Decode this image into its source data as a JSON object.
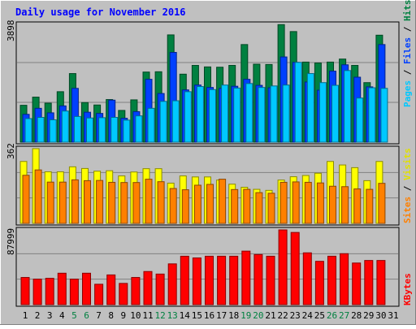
{
  "title": "Daily usage for November 2016",
  "colors": {
    "background": "#c0c0c0",
    "title": "#0000ff",
    "pages": "#00c8ff",
    "files": "#0040ff",
    "hits": "#008040",
    "visits": "#ffff00",
    "sites": "#ff8000",
    "kbytes": "#ff0000",
    "weekend_day": "#008040"
  },
  "chart_data": [
    {
      "type": "bar",
      "panel": "hits-files-pages",
      "title": "Daily usage for November 2016",
      "categories": [
        "1",
        "2",
        "3",
        "4",
        "5",
        "6",
        "7",
        "8",
        "9",
        "10",
        "11",
        "12",
        "13",
        "14",
        "15",
        "16",
        "17",
        "18",
        "19",
        "20",
        "21",
        "22",
        "23",
        "24",
        "25",
        "26",
        "27",
        "28",
        "29",
        "30",
        "31"
      ],
      "ylabel_max": "3898",
      "ylim": [
        0,
        3898
      ],
      "legend": [
        "Pages",
        "Files",
        "Hits"
      ],
      "series": [
        {
          "name": "Hits",
          "values": [
            1220,
            1490,
            1290,
            1670,
            2270,
            1310,
            1230,
            1410,
            1050,
            1400,
            2320,
            2330,
            3550,
            2250,
            2540,
            2490,
            2480,
            2540,
            3230,
            2580,
            2570,
            3890,
            3660,
            2650,
            2620,
            2650,
            2750,
            2540,
            1970,
            3540,
            null
          ]
        },
        {
          "name": "Files",
          "values": [
            920,
            1120,
            970,
            1200,
            1780,
            990,
            950,
            1390,
            790,
            1010,
            2080,
            1610,
            2970,
            1730,
            1890,
            1810,
            1780,
            1850,
            2080,
            1880,
            1800,
            2820,
            2640,
            1990,
            1720,
            2350,
            2560,
            2150,
            1830,
            3230,
            null
          ]
        },
        {
          "name": "Pages",
          "values": [
            780,
            820,
            740,
            1030,
            850,
            800,
            810,
            820,
            730,
            870,
            1120,
            1350,
            1370,
            1670,
            1840,
            1740,
            1890,
            1790,
            1940,
            1810,
            1860,
            1890,
            2640,
            2270,
            1970,
            1880,
            2370,
            1460,
            1800,
            1780,
            null
          ]
        }
      ],
      "weekend_days": [
        "5",
        "6",
        "12",
        "13",
        "19",
        "20",
        "26",
        "27"
      ]
    },
    {
      "type": "bar",
      "panel": "visits-sites",
      "categories": [
        "1",
        "2",
        "3",
        "4",
        "5",
        "6",
        "7",
        "8",
        "9",
        "10",
        "11",
        "12",
        "13",
        "14",
        "15",
        "16",
        "17",
        "18",
        "19",
        "20",
        "21",
        "22",
        "23",
        "24",
        "25",
        "26",
        "27",
        "28",
        "29",
        "30",
        "31"
      ],
      "ylabel_max": "362",
      "ylim": [
        0,
        362
      ],
      "legend": [
        "Sites",
        "Visits"
      ],
      "series": [
        {
          "name": "Visits",
          "values": [
            300,
            362,
            250,
            250,
            274,
            266,
            253,
            255,
            230,
            249,
            265,
            265,
            195,
            230,
            225,
            225,
            210,
            190,
            175,
            165,
            160,
            210,
            226,
            232,
            243,
            300,
            283,
            270,
            207,
            300,
            null
          ]
        },
        {
          "name": "Sites",
          "values": [
            233,
            259,
            200,
            200,
            211,
            207,
            208,
            199,
            198,
            198,
            214,
            202,
            169,
            163,
            185,
            189,
            214,
            164,
            165,
            149,
            146,
            199,
            201,
            199,
            196,
            180,
            178,
            167,
            165,
            194,
            null
          ]
        }
      ]
    },
    {
      "type": "bar",
      "panel": "kbytes",
      "categories": [
        "1",
        "2",
        "3",
        "4",
        "5",
        "6",
        "7",
        "8",
        "9",
        "10",
        "11",
        "12",
        "13",
        "14",
        "15",
        "16",
        "17",
        "18",
        "19",
        "20",
        "21",
        "22",
        "23",
        "24",
        "25",
        "26",
        "27",
        "28",
        "29",
        "30",
        "31"
      ],
      "ylabel_max": "87999",
      "ylim": [
        0,
        87999
      ],
      "legend": [
        "KBytes"
      ],
      "series": [
        {
          "name": "KBytes",
          "values": [
            32000,
            30000,
            31000,
            37000,
            30000,
            37000,
            24000,
            35000,
            25000,
            32000,
            39000,
            36000,
            48000,
            57000,
            55000,
            57000,
            57000,
            57000,
            63000,
            59000,
            57000,
            88000,
            85000,
            61000,
            51000,
            57000,
            60000,
            49000,
            52000,
            52000,
            null
          ]
        }
      ]
    }
  ]
}
